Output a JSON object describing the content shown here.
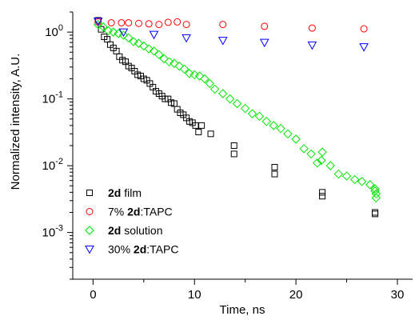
{
  "chart_data": {
    "type": "scatter",
    "title": "",
    "xlabel": "Time, ns",
    "ylabel": "Normalized intensity, A.U.",
    "xlim": [
      -2,
      31.5
    ],
    "ylim": [
      0.0002,
      2.0
    ],
    "yscale": "log",
    "x_ticks": [
      0,
      10,
      20,
      30
    ],
    "x_tick_labels": [
      "0",
      "10",
      "20",
      "30"
    ],
    "y_ticks": [
      0.001,
      0.01,
      0.1,
      1
    ],
    "y_tick_labels": [
      {
        "base": "10",
        "exp": "-3"
      },
      {
        "base": "10",
        "exp": "-2"
      },
      {
        "base": "10",
        "exp": "-1"
      },
      {
        "base": "10",
        "exp": "0"
      }
    ],
    "grid": false,
    "legend_position": "bottom-left",
    "series": [
      {
        "name": "2d film",
        "name_parts": [
          {
            "text": "2d",
            "bold": true
          },
          {
            "text": " film",
            "bold": false
          }
        ],
        "marker": "square",
        "color": "#000000",
        "x": [
          0.5,
          0.8,
          1.1,
          1.4,
          1.7,
          2.0,
          2.3,
          2.6,
          2.9,
          3.2,
          3.5,
          3.8,
          4.1,
          4.4,
          4.7,
          5.0,
          5.3,
          5.6,
          5.9,
          6.2,
          6.5,
          6.8,
          7.1,
          7.4,
          7.7,
          8.0,
          8.3,
          8.6,
          8.9,
          9.2,
          9.5,
          9.8,
          10.1,
          10.4,
          10.7,
          11.6,
          13.9,
          13.9,
          17.9,
          17.9,
          22.6,
          22.6,
          27.8,
          27.8
        ],
        "y": [
          1.5,
          1.1,
          0.85,
          0.78,
          0.65,
          0.58,
          0.52,
          0.43,
          0.38,
          0.36,
          0.31,
          0.29,
          0.26,
          0.23,
          0.22,
          0.2,
          0.19,
          0.17,
          0.15,
          0.13,
          0.12,
          0.11,
          0.1,
          0.1,
          0.088,
          0.085,
          0.07,
          0.062,
          0.058,
          0.052,
          0.046,
          0.044,
          0.04,
          0.032,
          0.04,
          0.03,
          0.02,
          0.015,
          0.0095,
          0.0075,
          0.004,
          0.0035,
          0.002,
          0.0019
        ]
      },
      {
        "name": "7% 2d:TAPC",
        "name_parts": [
          {
            "text": "7% ",
            "bold": false
          },
          {
            "text": "2d",
            "bold": true
          },
          {
            "text": ":TAPC",
            "bold": false
          }
        ],
        "marker": "circle",
        "color": "#ff0000",
        "x": [
          0.5,
          1.8,
          2.8,
          3.5,
          4.5,
          5.5,
          6.5,
          7.4,
          8.3,
          9.2,
          12.8,
          16.9,
          21.6,
          26.7
        ],
        "y": [
          1.42,
          1.38,
          1.38,
          1.38,
          1.35,
          1.33,
          1.3,
          1.4,
          1.42,
          1.3,
          1.3,
          1.22,
          1.15,
          1.12
        ]
      },
      {
        "name": "2d solution",
        "name_parts": [
          {
            "text": "2d",
            "bold": true
          },
          {
            "text": " solution",
            "bold": false
          }
        ],
        "marker": "diamond",
        "color": "#00e600",
        "x": [
          0.5,
          1.0,
          1.5,
          2.0,
          2.5,
          3.0,
          3.5,
          4.0,
          4.5,
          5.0,
          5.5,
          6.0,
          6.5,
          7.0,
          7.5,
          8.0,
          8.5,
          9.0,
          9.5,
          10.0,
          10.5,
          11.0,
          11.5,
          12.0,
          12.8,
          13.5,
          14.2,
          15.0,
          15.7,
          16.4,
          17.1,
          17.8,
          18.5,
          19.2,
          20.0,
          20.8,
          21.5,
          22.1,
          22.5,
          22.6,
          23.4,
          24.2,
          25.0,
          25.8,
          26.5,
          27.3,
          27.8,
          27.8,
          27.9,
          27.9
        ],
        "y": [
          1.3,
          1.2,
          1.05,
          1.0,
          0.95,
          0.9,
          0.82,
          0.72,
          0.68,
          0.62,
          0.56,
          0.52,
          0.46,
          0.4,
          0.36,
          0.34,
          0.31,
          0.28,
          0.24,
          0.23,
          0.22,
          0.2,
          0.17,
          0.14,
          0.12,
          0.1,
          0.085,
          0.072,
          0.06,
          0.055,
          0.046,
          0.04,
          0.036,
          0.03,
          0.025,
          0.018,
          0.015,
          0.011,
          0.012,
          0.016,
          0.01,
          0.0075,
          0.007,
          0.0062,
          0.0058,
          0.0052,
          0.0045,
          0.0042,
          0.0038,
          0.0033
        ]
      },
      {
        "name": "30% 2d:TAPC",
        "name_parts": [
          {
            "text": "30% ",
            "bold": false
          },
          {
            "text": "2d",
            "bold": true
          },
          {
            "text": ":TAPC",
            "bold": false
          }
        ],
        "marker": "triangle-down",
        "color": "#0000ff",
        "x": [
          0.5,
          3.0,
          6.0,
          9.2,
          12.8,
          16.9,
          21.6,
          26.7
        ],
        "y": [
          1.45,
          1.0,
          0.92,
          0.82,
          0.75,
          0.7,
          0.64,
          0.6
        ]
      }
    ]
  }
}
